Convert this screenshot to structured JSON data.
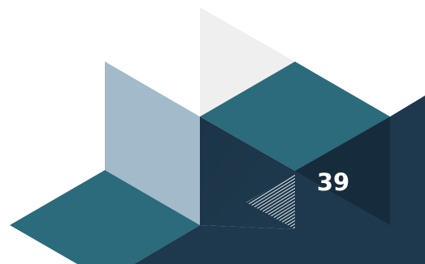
{
  "slide": {
    "page_number": "39"
  },
  "palette": {
    "light_gray": "#efefef",
    "steel_blue_light": "#a2bac9",
    "teal": "#2b6b7b",
    "navy": "#1e394d",
    "navy_deep": "#162b3b",
    "white": "#ffffff"
  },
  "icons": {
    "hatch_pattern": "diagonal-stripes-decoration"
  }
}
